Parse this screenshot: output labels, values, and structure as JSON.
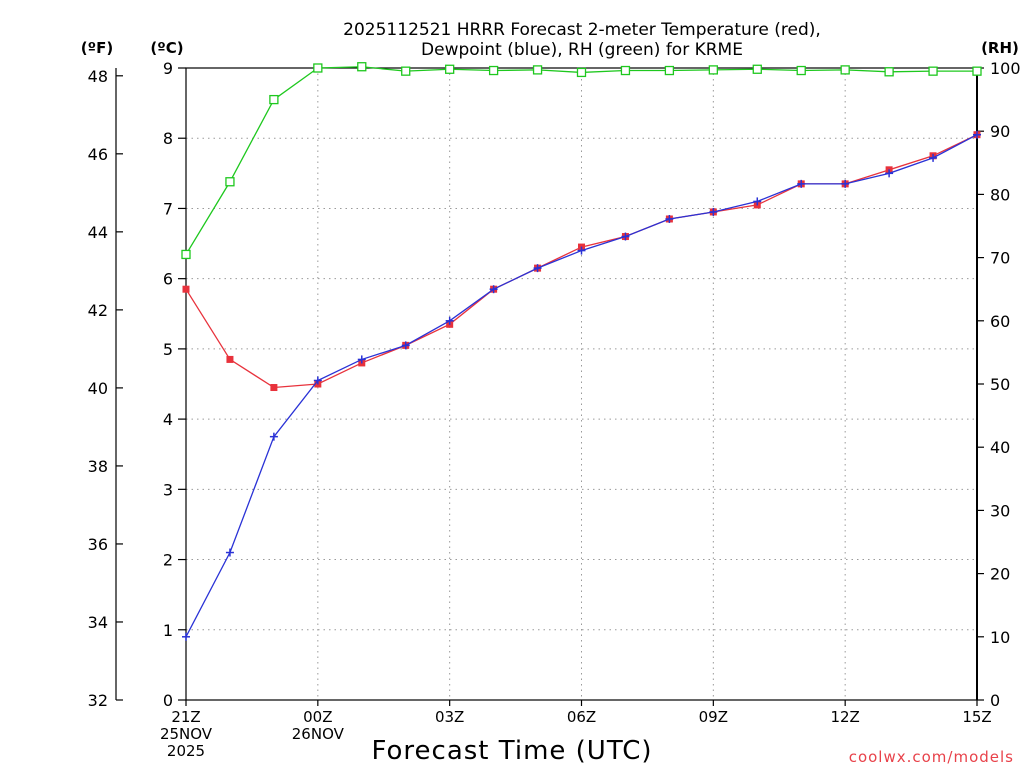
{
  "chart_data": {
    "type": "line",
    "title_line1": "2025112521 HRRR Forecast 2-meter Temperature (red),",
    "title_line2": "Dewpoint (blue), RH (green) for KRME",
    "xlabel": "Forecast Time (UTC)",
    "units": {
      "f": "(ºF)",
      "c": "(ºC)",
      "rh": "(RH)"
    },
    "x_hours": [
      0,
      1,
      2,
      3,
      4,
      5,
      6,
      7,
      8,
      9,
      10,
      11,
      12,
      13,
      14,
      15,
      16,
      17,
      18
    ],
    "x_ticks": [
      {
        "hour": 0,
        "lines": [
          "21Z",
          "25NOV",
          "2025"
        ]
      },
      {
        "hour": 3,
        "lines": [
          "00Z",
          "26NOV"
        ]
      },
      {
        "hour": 6,
        "lines": [
          "03Z"
        ]
      },
      {
        "hour": 9,
        "lines": [
          "06Z"
        ]
      },
      {
        "hour": 12,
        "lines": [
          "09Z"
        ]
      },
      {
        "hour": 15,
        "lines": [
          "12Z"
        ]
      },
      {
        "hour": 18,
        "lines": [
          "15Z"
        ]
      }
    ],
    "ylim_c": [
      0,
      9
    ],
    "ylim_f": [
      32,
      48.2
    ],
    "ylim_rh": [
      0,
      100
    ],
    "yticks_c": [
      "0",
      "1",
      "2",
      "3",
      "4",
      "5",
      "6",
      "7",
      "8",
      "9"
    ],
    "yticks_f": [
      "32",
      "34",
      "36",
      "38",
      "40",
      "42",
      "44",
      "46",
      "48"
    ],
    "yticks_rh": [
      "0",
      "10",
      "20",
      "30",
      "40",
      "50",
      "60",
      "70",
      "80",
      "90",
      "100"
    ],
    "grid": true,
    "series": [
      {
        "key": "temp",
        "axis": "c",
        "color": "#e8323c",
        "marker": "filled-square",
        "values": [
          5.85,
          4.85,
          4.45,
          4.5,
          4.8,
          5.05,
          5.35,
          5.85,
          6.15,
          6.45,
          6.6,
          6.85,
          6.95,
          7.05,
          7.35,
          7.35,
          7.55,
          7.75,
          8.05
        ]
      },
      {
        "key": "dewpoint",
        "axis": "c",
        "color": "#2a32d6",
        "marker": "plus",
        "values": [
          0.9,
          2.1,
          3.75,
          4.55,
          4.85,
          5.05,
          5.4,
          5.85,
          6.15,
          6.4,
          6.6,
          6.85,
          6.95,
          7.1,
          7.35,
          7.35,
          7.5,
          7.72,
          8.05
        ]
      },
      {
        "key": "rh",
        "axis": "rh",
        "color": "#1ec81e",
        "marker": "open-square",
        "values": [
          70.5,
          82,
          95,
          100,
          100.2,
          99.5,
          99.8,
          99.6,
          99.7,
          99.3,
          99.6,
          99.6,
          99.7,
          99.8,
          99.6,
          99.7,
          99.4,
          99.5,
          99.5
        ]
      }
    ],
    "credit": "coolwx.com/models"
  }
}
